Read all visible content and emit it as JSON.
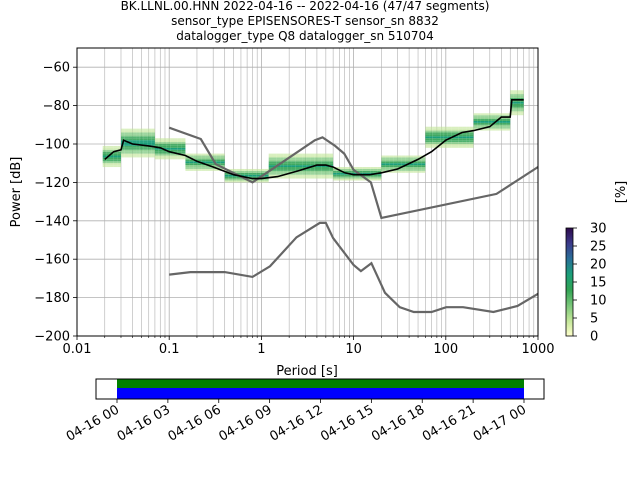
{
  "title": {
    "line1": "BK.LLNL.00.HNN   2022-04-16 -- 2022-04-16  (47/47 segments)",
    "line2": "sensor_type EPISENSORES-T sensor_sn 8832",
    "line3": "datalogger_type Q8 datalogger_sn 510704"
  },
  "colors": {
    "mean": "#000000",
    "noise_models": "#666666",
    "grid": "#b0b0b0",
    "coverage_top": "#008000",
    "coverage_bottom": "#0000ff"
  },
  "colorbar": {
    "label": "[%]",
    "ticks": [
      "0",
      "5",
      "10",
      "15",
      "20",
      "25",
      "30"
    ],
    "stops": [
      "#ffffcc",
      "#c2e699",
      "#78c679",
      "#31a354",
      "#1b9f7a",
      "#2a6f98",
      "#3b3a8a",
      "#2d0a4b"
    ]
  },
  "timeline": {
    "ticks": [
      "04-16 00",
      "04-16 03",
      "04-16 06",
      "04-16 09",
      "04-16 12",
      "04-16 15",
      "04-16 18",
      "04-16 21",
      "04-17 00"
    ]
  },
  "chart_data": {
    "type": "line",
    "xlabel": "Period [s]",
    "ylabel": "Power [dB]",
    "xscale": "log",
    "xlim": [
      0.01,
      1000
    ],
    "ylim": [
      -200,
      -50
    ],
    "x_ticks": [
      "0.01",
      "0.1",
      "1",
      "10",
      "100",
      "1000"
    ],
    "y_ticks": [
      "−200",
      "−180",
      "−160",
      "−140",
      "−120",
      "−100",
      "−80",
      "−60"
    ],
    "grid": true,
    "series": [
      {
        "role": "mean",
        "points": [
          [
            0.02,
            -108
          ],
          [
            0.025,
            -104
          ],
          [
            0.03,
            -103
          ],
          [
            0.032,
            -98
          ],
          [
            0.04,
            -100
          ],
          [
            0.06,
            -101
          ],
          [
            0.08,
            -102
          ],
          [
            0.1,
            -104
          ],
          [
            0.15,
            -106
          ],
          [
            0.2,
            -109
          ],
          [
            0.3,
            -112
          ],
          [
            0.5,
            -116
          ],
          [
            0.8,
            -118
          ],
          [
            1.0,
            -118
          ],
          [
            1.5,
            -117
          ],
          [
            2.5,
            -114
          ],
          [
            4,
            -111
          ],
          [
            5,
            -111
          ],
          [
            6,
            -112
          ],
          [
            8,
            -115
          ],
          [
            10,
            -116
          ],
          [
            15,
            -116
          ],
          [
            20,
            -115
          ],
          [
            30,
            -113
          ],
          [
            50,
            -108
          ],
          [
            70,
            -104
          ],
          [
            100,
            -98
          ],
          [
            150,
            -94
          ],
          [
            200,
            -93
          ],
          [
            300,
            -91
          ],
          [
            400,
            -86
          ],
          [
            500,
            -86
          ],
          [
            520,
            -77
          ],
          [
            700,
            -77
          ]
        ]
      },
      {
        "role": "high_noise_model",
        "points": [
          [
            0.1,
            -91.5
          ],
          [
            0.22,
            -97.4
          ],
          [
            0.32,
            -110.5
          ],
          [
            0.8,
            -120
          ],
          [
            3.8,
            -98
          ],
          [
            4.6,
            -96.5
          ],
          [
            6.3,
            -101
          ],
          [
            7.9,
            -105
          ],
          [
            10,
            -113.5
          ],
          [
            15.4,
            -120
          ],
          [
            20,
            -138.5
          ],
          [
            354.8,
            -126
          ],
          [
            1000,
            -112
          ]
        ]
      },
      {
        "role": "low_noise_model",
        "points": [
          [
            0.1,
            -168
          ],
          [
            0.17,
            -166.7
          ],
          [
            0.4,
            -166.7
          ],
          [
            0.8,
            -169.2
          ],
          [
            1.24,
            -163.7
          ],
          [
            2.4,
            -148.6
          ],
          [
            4.3,
            -141.1
          ],
          [
            5,
            -141.1
          ],
          [
            6,
            -149
          ],
          [
            10,
            -163
          ],
          [
            12,
            -166.2
          ],
          [
            15.6,
            -162.1
          ],
          [
            21.9,
            -177.5
          ],
          [
            31.6,
            -185
          ],
          [
            45,
            -187.5
          ],
          [
            70,
            -187.5
          ],
          [
            101,
            -185
          ],
          [
            154,
            -185
          ],
          [
            328,
            -187.5
          ],
          [
            600,
            -184.4
          ],
          [
            1000,
            -178
          ]
        ]
      }
    ],
    "psd_histogram": [
      {
        "x": [
          0.019,
          0.03
        ],
        "y_center": -107,
        "spread": 5
      },
      {
        "x": [
          0.03,
          0.07
        ],
        "y_center": -100,
        "spread": 7
      },
      {
        "x": [
          0.07,
          0.15
        ],
        "y_center": -103,
        "spread": 5
      },
      {
        "x": [
          0.15,
          0.4
        ],
        "y_center": -110,
        "spread": 4
      },
      {
        "x": [
          0.4,
          1.2
        ],
        "y_center": -117,
        "spread": 3
      },
      {
        "x": [
          1.2,
          6
        ],
        "y_center": -112,
        "spread": 6
      },
      {
        "x": [
          6,
          20
        ],
        "y_center": -116,
        "spread": 3
      },
      {
        "x": [
          20,
          60
        ],
        "y_center": -111,
        "spread": 4
      },
      {
        "x": [
          60,
          200
        ],
        "y_center": -97,
        "spread": 5
      },
      {
        "x": [
          200,
          500
        ],
        "y_center": -89,
        "spread": 4
      },
      {
        "x": [
          500,
          700
        ],
        "y_center": -79,
        "spread": 6
      }
    ]
  }
}
